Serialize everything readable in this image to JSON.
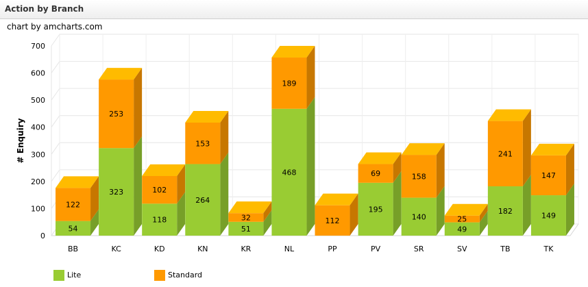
{
  "header": {
    "title": "Action by Branch"
  },
  "credit": "chart by amcharts.com",
  "chart_data": {
    "type": "bar",
    "stacked": true,
    "style": "3d",
    "ylabel": "# Enquiry",
    "ylim": [
      0,
      700
    ],
    "yticks": [
      0,
      100,
      200,
      300,
      400,
      500,
      600,
      700
    ],
    "grid": true,
    "legend_position": "bottom-left",
    "categories": [
      "BB",
      "KC",
      "KD",
      "KN",
      "KR",
      "NL",
      "PP",
      "PV",
      "SR",
      "SV",
      "TB",
      "TK"
    ],
    "series": [
      {
        "name": "Lite",
        "color": "#99CC33",
        "values": [
          54,
          323,
          118,
          264,
          51,
          468,
          0,
          195,
          140,
          49,
          182,
          149
        ]
      },
      {
        "name": "Standard",
        "color": "#FF9900",
        "values": [
          122,
          253,
          102,
          153,
          32,
          189,
          112,
          69,
          158,
          25,
          241,
          147
        ]
      }
    ]
  }
}
